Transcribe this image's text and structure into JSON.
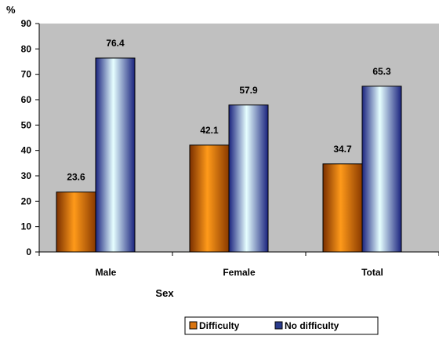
{
  "chart_data": {
    "type": "bar",
    "ylabel": "%",
    "xlabel": "Sex",
    "categories": [
      "Male",
      "Female",
      "Total"
    ],
    "series": [
      {
        "name": "Difficulty",
        "values": [
          23.6,
          42.1,
          34.7
        ],
        "color": "#d9740f"
      },
      {
        "name": "No difficulty",
        "values": [
          76.4,
          57.9,
          65.3
        ],
        "color": "#2a3b8c"
      }
    ],
    "ylim": [
      0,
      90
    ],
    "yticks": [
      0,
      10,
      20,
      30,
      40,
      50,
      60,
      70,
      80,
      90
    ],
    "grid": false,
    "plot_background": "#c0c0c0",
    "legend_position": "bottom-right"
  }
}
